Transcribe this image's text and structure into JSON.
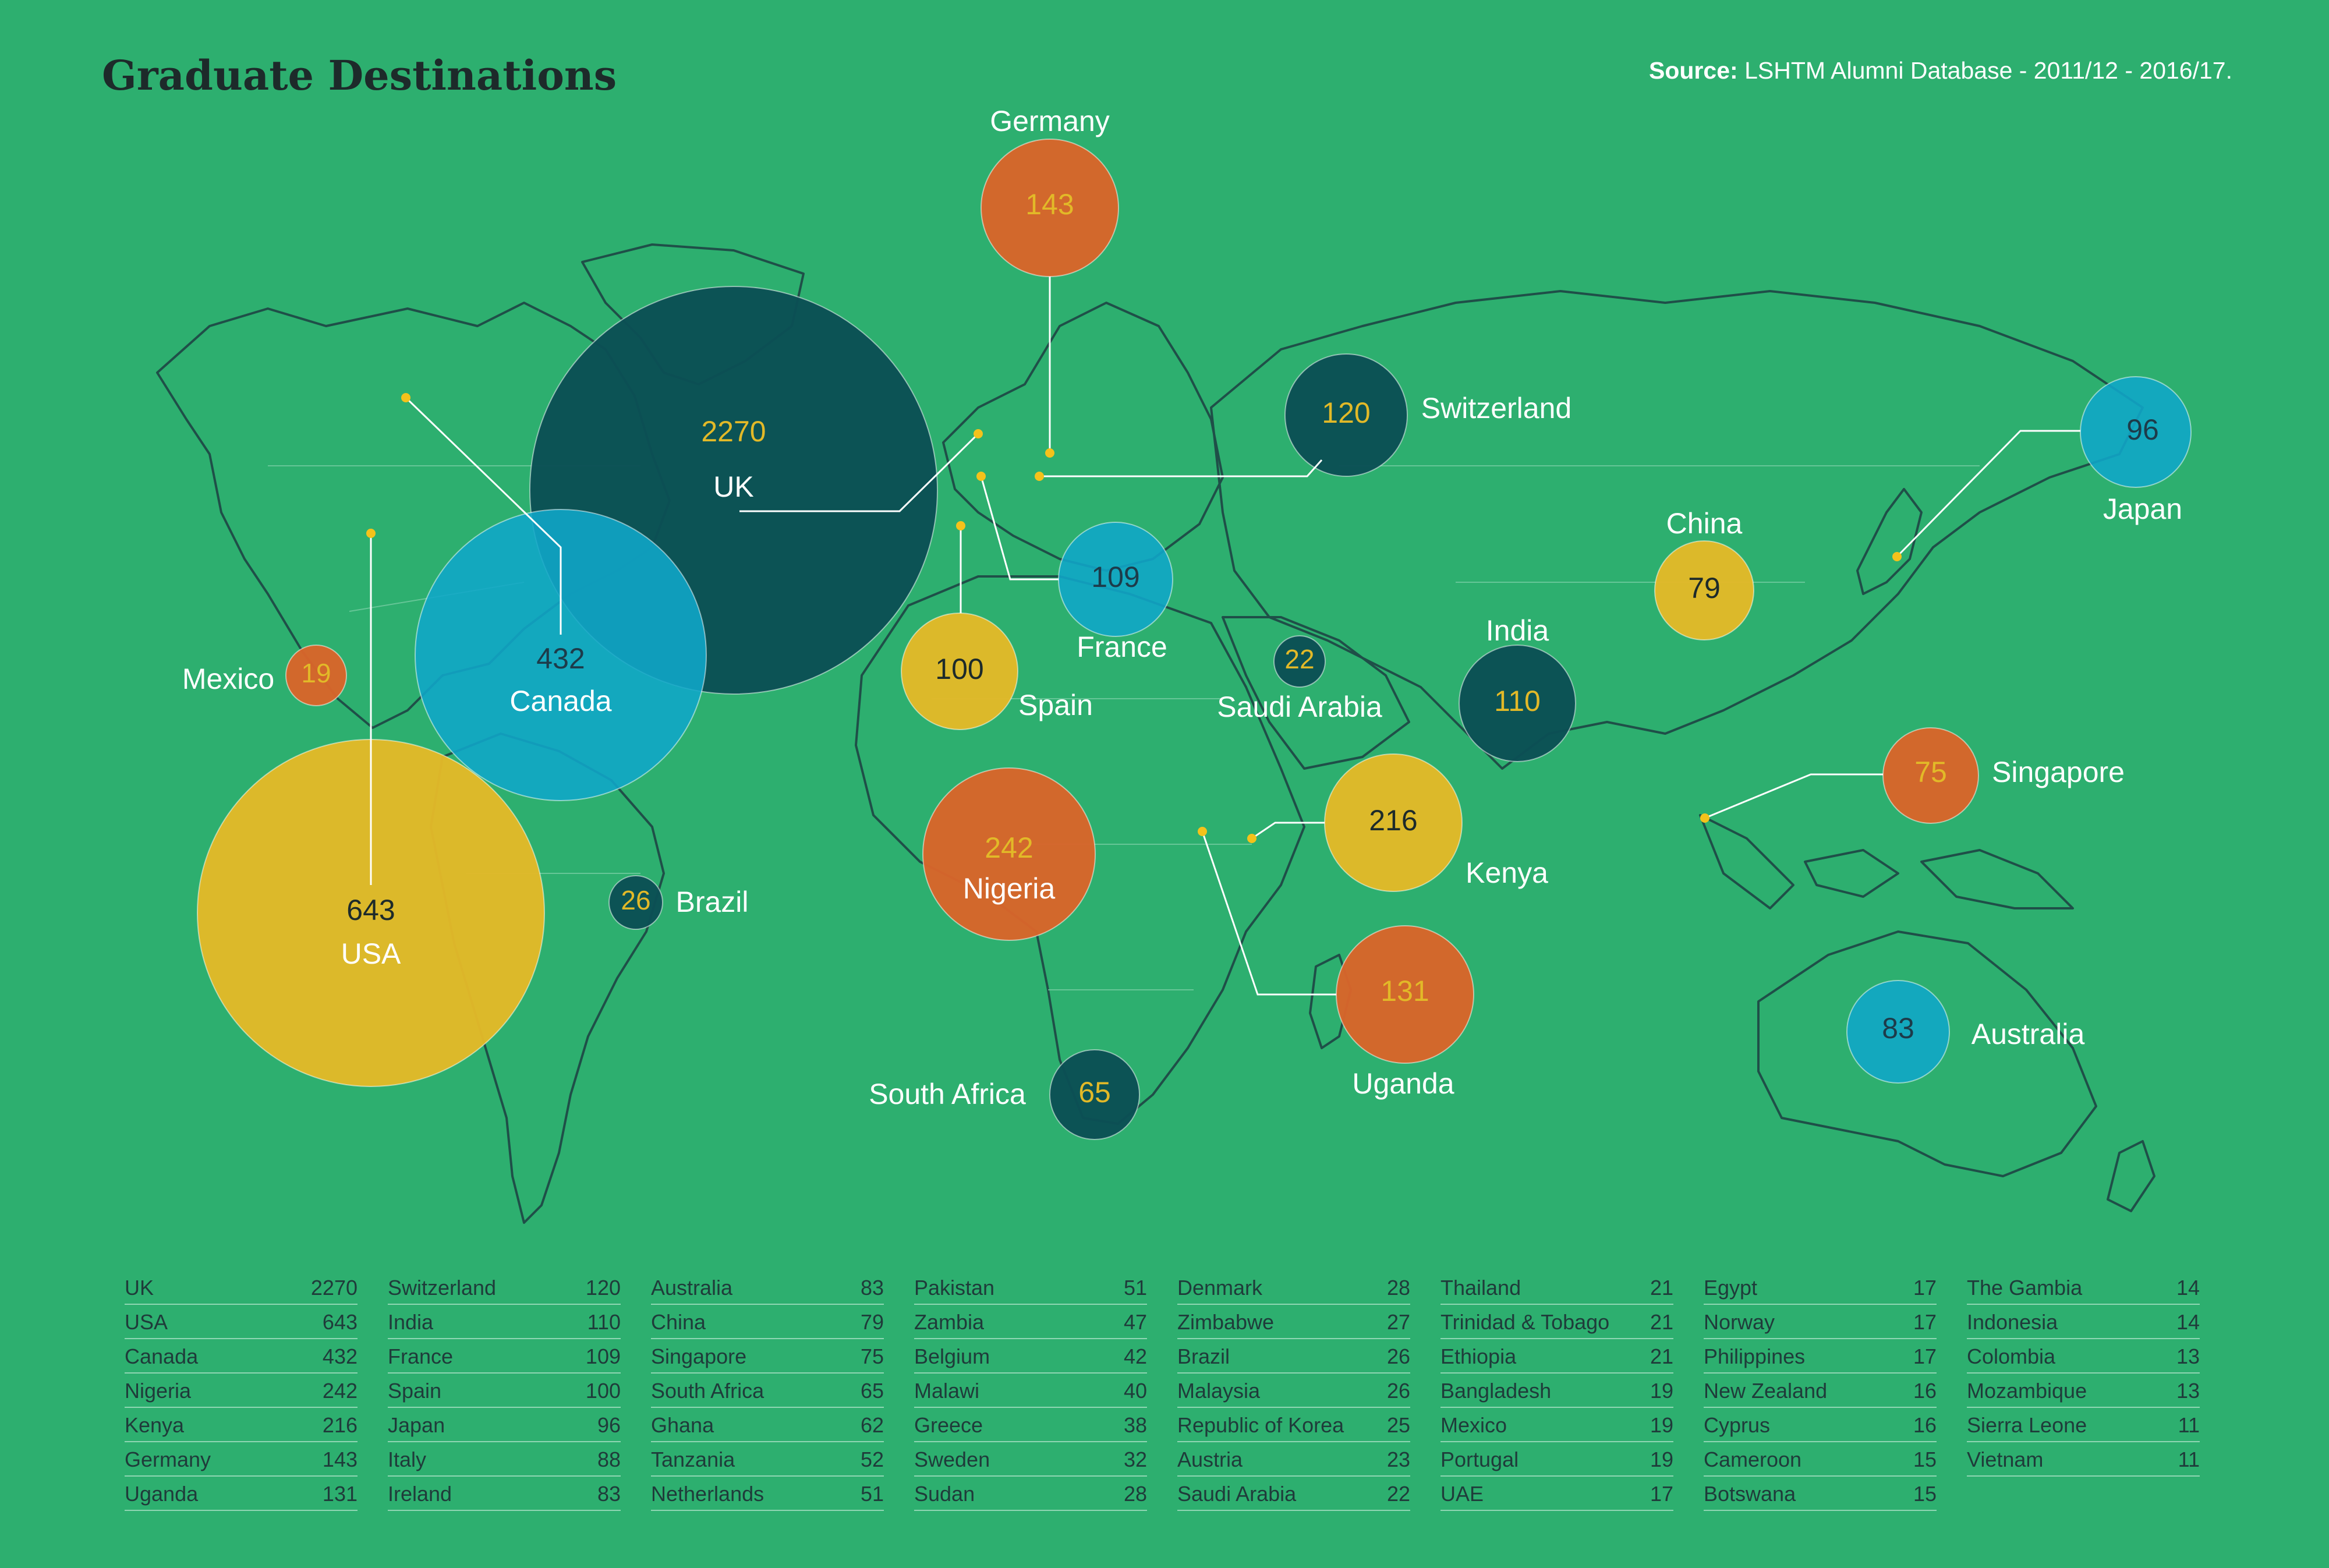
{
  "header": {
    "title": "Graduate Destinations",
    "source_label": "Source:",
    "source_text": "LSHTM Alumni Database - 2011/12 - 2016/17."
  },
  "colors": {
    "background": "#2daf6f",
    "land_outline": "#1f4f48",
    "dark_teal": "#0b4f55",
    "cyan": "#10a7c9",
    "yellow": "#e2b928",
    "orange": "#d8652a",
    "leader_dot": "#f4c21b"
  },
  "bubbles": [
    {
      "country": "UK",
      "value": 2270,
      "color": "dark_teal"
    },
    {
      "country": "USA",
      "value": 643,
      "color": "yellow"
    },
    {
      "country": "Canada",
      "value": 432,
      "color": "cyan"
    },
    {
      "country": "Nigeria",
      "value": 242,
      "color": "orange"
    },
    {
      "country": "Kenya",
      "value": 216,
      "color": "yellow"
    },
    {
      "country": "Germany",
      "value": 143,
      "color": "orange"
    },
    {
      "country": "Uganda",
      "value": 131,
      "color": "orange"
    },
    {
      "country": "Switzerland",
      "value": 120,
      "color": "dark_teal"
    },
    {
      "country": "India",
      "value": 110,
      "color": "dark_teal"
    },
    {
      "country": "France",
      "value": 109,
      "color": "cyan"
    },
    {
      "country": "Spain",
      "value": 100,
      "color": "yellow"
    },
    {
      "country": "Japan",
      "value": 96,
      "color": "cyan"
    },
    {
      "country": "Australia",
      "value": 83,
      "color": "cyan"
    },
    {
      "country": "China",
      "value": 79,
      "color": "yellow"
    },
    {
      "country": "Singapore",
      "value": 75,
      "color": "orange"
    },
    {
      "country": "South Africa",
      "value": 65,
      "color": "dark_teal"
    },
    {
      "country": "Brazil",
      "value": 26,
      "color": "dark_teal"
    },
    {
      "country": "Saudi Arabia",
      "value": 22,
      "color": "dark_teal"
    },
    {
      "country": "Mexico",
      "value": 19,
      "color": "orange"
    }
  ],
  "table": {
    "columns": [
      [
        [
          "UK",
          "2270"
        ],
        [
          "USA",
          "643"
        ],
        [
          "Canada",
          "432"
        ],
        [
          "Nigeria",
          "242"
        ],
        [
          "Kenya",
          "216"
        ],
        [
          "Germany",
          "143"
        ],
        [
          "Uganda",
          "131"
        ]
      ],
      [
        [
          "Switzerland",
          "120"
        ],
        [
          "India",
          "110"
        ],
        [
          "France",
          "109"
        ],
        [
          "Spain",
          "100"
        ],
        [
          "Japan",
          "96"
        ],
        [
          "Italy",
          "88"
        ],
        [
          "Ireland",
          "83"
        ]
      ],
      [
        [
          "Australia",
          "83"
        ],
        [
          "China",
          "79"
        ],
        [
          "Singapore",
          "75"
        ],
        [
          "South Africa",
          "65"
        ],
        [
          "Ghana",
          "62"
        ],
        [
          "Tanzania",
          "52"
        ],
        [
          "Netherlands",
          "51"
        ]
      ],
      [
        [
          "Pakistan",
          "51"
        ],
        [
          "Zambia",
          "47"
        ],
        [
          "Belgium",
          "42"
        ],
        [
          "Malawi",
          "40"
        ],
        [
          "Greece",
          "38"
        ],
        [
          "Sweden",
          "32"
        ],
        [
          "Sudan",
          "28"
        ]
      ],
      [
        [
          "Denmark",
          "28"
        ],
        [
          "Zimbabwe",
          "27"
        ],
        [
          "Brazil",
          "26"
        ],
        [
          "Malaysia",
          "26"
        ],
        [
          "Republic of Korea",
          "25"
        ],
        [
          "Austria",
          "23"
        ],
        [
          "Saudi Arabia",
          "22"
        ]
      ],
      [
        [
          "Thailand",
          "21"
        ],
        [
          "Trinidad & Tobago",
          "21"
        ],
        [
          "Ethiopia",
          "21"
        ],
        [
          "Bangladesh",
          "19"
        ],
        [
          "Mexico",
          "19"
        ],
        [
          "Portugal",
          "19"
        ],
        [
          "UAE",
          "17"
        ]
      ],
      [
        [
          "Egypt",
          "17"
        ],
        [
          "Norway",
          "17"
        ],
        [
          "Philippines",
          "17"
        ],
        [
          "New Zealand",
          "16"
        ],
        [
          "Cyprus",
          "16"
        ],
        [
          "Cameroon",
          "15"
        ],
        [
          "Botswana",
          "15"
        ]
      ],
      [
        [
          "The Gambia",
          "14"
        ],
        [
          "Indonesia",
          "14"
        ],
        [
          "Colombia",
          "13"
        ],
        [
          "Mozambique",
          "13"
        ],
        [
          "Sierra Leone",
          "11"
        ],
        [
          "Vietnam",
          "11"
        ]
      ]
    ]
  }
}
